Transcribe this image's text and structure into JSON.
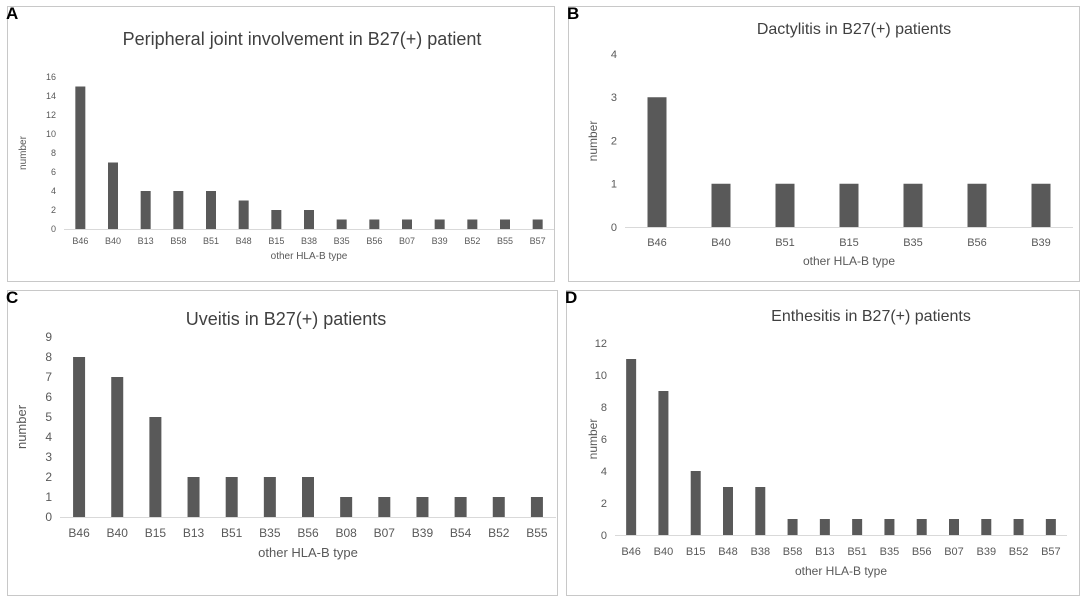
{
  "chart_data": [
    {
      "id": "A",
      "type": "bar",
      "title": "Peripheral joint involvement in B27(+) patient",
      "xlabel": "other HLA-B type",
      "ylabel": "number",
      "ylim": [
        0,
        16
      ],
      "yticks": [
        0,
        2,
        4,
        6,
        8,
        10,
        12,
        14,
        16
      ],
      "categories": [
        "B46",
        "B40",
        "B13",
        "B58",
        "B51",
        "B48",
        "B15",
        "B38",
        "B35",
        "B56",
        "B07",
        "B39",
        "B52",
        "B55",
        "B57"
      ],
      "values": [
        15,
        7,
        4,
        4,
        4,
        3,
        2,
        2,
        1,
        1,
        1,
        1,
        1,
        1,
        1
      ],
      "bar_color": "#595959"
    },
    {
      "id": "B",
      "type": "bar",
      "title": "Dactylitis in B27(+) patients",
      "xlabel": "other HLA-B type",
      "ylabel": "number",
      "ylim": [
        0,
        4
      ],
      "yticks": [
        0,
        1,
        2,
        3,
        4
      ],
      "categories": [
        "B46",
        "B40",
        "B51",
        "B15",
        "B35",
        "B56",
        "B39"
      ],
      "values": [
        3,
        1,
        1,
        1,
        1,
        1,
        1
      ],
      "bar_color": "#595959"
    },
    {
      "id": "C",
      "type": "bar",
      "title": "Uveitis in B27(+) patients",
      "xlabel": "other HLA-B type",
      "ylabel": "number",
      "ylim": [
        0,
        9
      ],
      "yticks": [
        0,
        1,
        2,
        3,
        4,
        5,
        6,
        7,
        8,
        9
      ],
      "categories": [
        "B46",
        "B40",
        "B15",
        "B13",
        "B51",
        "B35",
        "B56",
        "B08",
        "B07",
        "B39",
        "B54",
        "B52",
        "B55"
      ],
      "values": [
        8,
        7,
        5,
        2,
        2,
        2,
        2,
        1,
        1,
        1,
        1,
        1,
        1
      ],
      "bar_color": "#595959"
    },
    {
      "id": "D",
      "type": "bar",
      "title": "Enthesitis in B27(+) patients",
      "xlabel": "other HLA-B type",
      "ylabel": "number",
      "ylim": [
        0,
        12
      ],
      "yticks": [
        0,
        2,
        4,
        6,
        8,
        10,
        12
      ],
      "categories": [
        "B46",
        "B40",
        "B15",
        "B48",
        "B38",
        "B58",
        "B13",
        "B51",
        "B35",
        "B56",
        "B07",
        "B39",
        "B52",
        "B57"
      ],
      "values": [
        11,
        9,
        4,
        3,
        3,
        1,
        1,
        1,
        1,
        1,
        1,
        1,
        1,
        1
      ],
      "bar_color": "#595959"
    }
  ]
}
